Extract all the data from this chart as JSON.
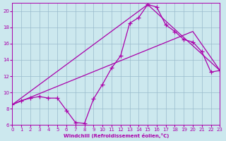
{
  "bg_color": "#cce8ee",
  "line_color": "#aa00aa",
  "grid_color": "#99bbcc",
  "xlabel": "Windchill (Refroidissement éolien,°C)",
  "xlim": [
    0,
    23
  ],
  "ylim": [
    6,
    21
  ],
  "yticks": [
    6,
    8,
    10,
    12,
    14,
    16,
    18,
    20
  ],
  "xticks": [
    0,
    1,
    2,
    3,
    4,
    5,
    6,
    7,
    8,
    9,
    10,
    11,
    12,
    13,
    14,
    15,
    16,
    17,
    18,
    19,
    20,
    21,
    22,
    23
  ],
  "curve_x": [
    0,
    1,
    2,
    3,
    4,
    5,
    6,
    7,
    8,
    9,
    10,
    11,
    12,
    13,
    14,
    15,
    16,
    17,
    18,
    19,
    20,
    21,
    22,
    23
  ],
  "curve_y": [
    8.5,
    9.0,
    9.3,
    9.5,
    9.3,
    9.3,
    7.8,
    6.3,
    6.2,
    9.2,
    11.0,
    13.0,
    14.5,
    18.5,
    19.2,
    20.8,
    20.5,
    18.3,
    17.5,
    16.5,
    16.2,
    15.0,
    12.5,
    12.7
  ],
  "line2_x": [
    0,
    15,
    23
  ],
  "line2_y": [
    8.5,
    20.8,
    12.7
  ],
  "line3_x": [
    0,
    20,
    23
  ],
  "line3_y": [
    8.5,
    17.5,
    12.7
  ]
}
